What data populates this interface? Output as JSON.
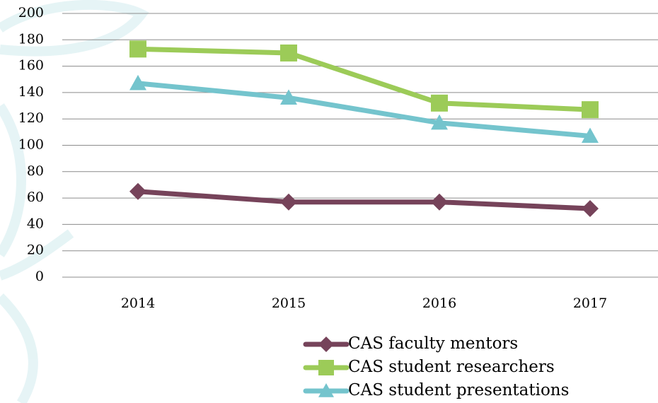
{
  "chart_data": {
    "type": "line",
    "categories": [
      "2014",
      "2015",
      "2016",
      "2017"
    ],
    "series": [
      {
        "name": "CAS faculty mentors",
        "color": "#76435a",
        "marker": "diamond",
        "values": [
          65,
          57,
          57,
          52
        ]
      },
      {
        "name": "CAS student researchers",
        "color": "#9ccb58",
        "marker": "square",
        "values": [
          173,
          170,
          132,
          127
        ]
      },
      {
        "name": "CAS student presentations",
        "color": "#74c4cd",
        "marker": "triangle",
        "values": [
          147,
          136,
          117,
          107
        ]
      }
    ],
    "ylim": [
      0,
      200
    ],
    "yticks": [
      0,
      20,
      40,
      60,
      80,
      100,
      120,
      140,
      160,
      180,
      200
    ],
    "grid": true,
    "legend": "bottom"
  }
}
